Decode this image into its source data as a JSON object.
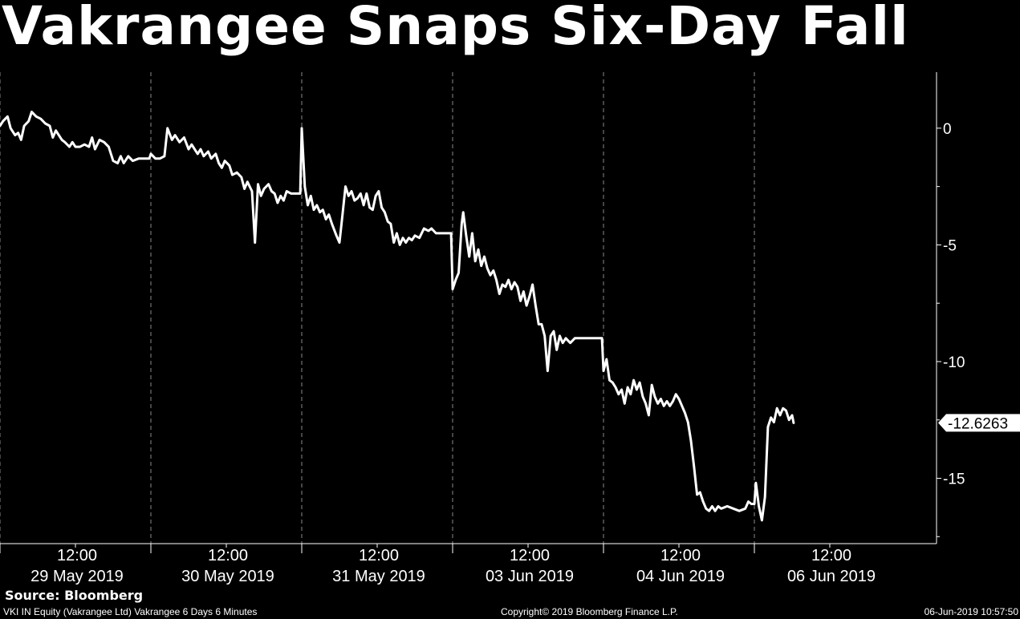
{
  "chart_data": {
    "type": "line",
    "title": "Vakrangee Snaps Six-Day Fall",
    "xlabel": "",
    "ylabel": "",
    "ylim": [
      -17.8,
      2.4
    ],
    "yticks": [
      0,
      -5,
      -10,
      -15
    ],
    "ytick_labels": [
      "0",
      "-5",
      "-10",
      "-15"
    ],
    "last_value_label": "-12.6263",
    "last_value": -12.6263,
    "grid": "vertical dashed at day boundaries",
    "x_label_groups": [
      {
        "time": "12:00",
        "date": "29 May 2019"
      },
      {
        "time": "12:00",
        "date": "30 May 2019"
      },
      {
        "time": "12:00",
        "date": "31 May 2019"
      },
      {
        "time": "12:00",
        "date": "03 Jun 2019"
      },
      {
        "time": "12:00",
        "date": "04 Jun 2019"
      },
      {
        "time": "12:00",
        "date": "06 Jun 2019"
      }
    ],
    "days": [
      "29 May 2019",
      "30 May 2019",
      "31 May 2019",
      "03 Jun 2019",
      "04 Jun 2019",
      "06 Jun 2019"
    ],
    "x_range_days": [
      0,
      6.2
    ],
    "series": [
      {
        "color": "#ffffff",
        "points": [
          [
            0.0,
            0.1
          ],
          [
            0.02,
            0.3
          ],
          [
            0.05,
            0.5
          ],
          [
            0.07,
            0.0
          ],
          [
            0.1,
            -0.3
          ],
          [
            0.12,
            -0.2
          ],
          [
            0.14,
            -0.5
          ],
          [
            0.16,
            0.1
          ],
          [
            0.19,
            0.3
          ],
          [
            0.21,
            0.7
          ],
          [
            0.24,
            0.5
          ],
          [
            0.27,
            0.4
          ],
          [
            0.3,
            0.2
          ],
          [
            0.33,
            0.1
          ],
          [
            0.35,
            -0.4
          ],
          [
            0.37,
            -0.1
          ],
          [
            0.39,
            -0.3
          ],
          [
            0.41,
            -0.5
          ],
          [
            0.43,
            -0.6
          ],
          [
            0.46,
            -0.8
          ],
          [
            0.48,
            -0.6
          ],
          [
            0.5,
            -0.8
          ],
          [
            0.53,
            -0.8
          ],
          [
            0.56,
            -0.7
          ],
          [
            0.59,
            -0.8
          ],
          [
            0.61,
            -0.4
          ],
          [
            0.63,
            -0.9
          ],
          [
            0.66,
            -0.5
          ],
          [
            0.69,
            -0.6
          ],
          [
            0.72,
            -0.8
          ],
          [
            0.75,
            -1.4
          ],
          [
            0.78,
            -1.5
          ],
          [
            0.8,
            -1.2
          ],
          [
            0.82,
            -1.5
          ],
          [
            0.85,
            -1.2
          ],
          [
            0.88,
            -1.4
          ],
          [
            0.92,
            -1.3
          ],
          [
            0.96,
            -1.3
          ],
          [
            0.99,
            -1.3
          ],
          [
            1.0,
            -1.1
          ],
          [
            1.03,
            -1.3
          ],
          [
            1.06,
            -1.3
          ],
          [
            1.09,
            -1.2
          ],
          [
            1.11,
            0.0
          ],
          [
            1.14,
            -0.5
          ],
          [
            1.16,
            -0.3
          ],
          [
            1.19,
            -0.6
          ],
          [
            1.22,
            -0.4
          ],
          [
            1.25,
            -0.9
          ],
          [
            1.27,
            -0.7
          ],
          [
            1.29,
            -0.9
          ],
          [
            1.31,
            -1.1
          ],
          [
            1.33,
            -0.9
          ],
          [
            1.35,
            -1.2
          ],
          [
            1.38,
            -1.0
          ],
          [
            1.4,
            -1.3
          ],
          [
            1.43,
            -1.1
          ],
          [
            1.45,
            -1.5
          ],
          [
            1.47,
            -1.7
          ],
          [
            1.49,
            -1.4
          ],
          [
            1.52,
            -1.6
          ],
          [
            1.54,
            -2.0
          ],
          [
            1.57,
            -1.9
          ],
          [
            1.6,
            -2.1
          ],
          [
            1.62,
            -2.6
          ],
          [
            1.64,
            -2.3
          ],
          [
            1.67,
            -2.7
          ],
          [
            1.69,
            -4.9
          ],
          [
            1.71,
            -2.4
          ],
          [
            1.73,
            -2.9
          ],
          [
            1.75,
            -2.6
          ],
          [
            1.78,
            -2.4
          ],
          [
            1.8,
            -2.7
          ],
          [
            1.82,
            -2.8
          ],
          [
            1.84,
            -3.2
          ],
          [
            1.86,
            -2.9
          ],
          [
            1.88,
            -3.1
          ],
          [
            1.9,
            -2.7
          ],
          [
            1.93,
            -2.8
          ],
          [
            1.96,
            -2.8
          ],
          [
            1.99,
            -2.8
          ],
          [
            2.0,
            0.0
          ],
          [
            2.02,
            -2.5
          ],
          [
            2.04,
            -3.3
          ],
          [
            2.06,
            -2.9
          ],
          [
            2.08,
            -3.5
          ],
          [
            2.1,
            -3.3
          ],
          [
            2.12,
            -3.6
          ],
          [
            2.14,
            -3.5
          ],
          [
            2.16,
            -3.9
          ],
          [
            2.18,
            -3.7
          ],
          [
            2.2,
            -4.1
          ],
          [
            2.23,
            -4.6
          ],
          [
            2.25,
            -4.9
          ],
          [
            2.27,
            -3.7
          ],
          [
            2.29,
            -2.5
          ],
          [
            2.31,
            -2.9
          ],
          [
            2.33,
            -2.7
          ],
          [
            2.35,
            -3.1
          ],
          [
            2.37,
            -3.0
          ],
          [
            2.39,
            -2.8
          ],
          [
            2.41,
            -3.3
          ],
          [
            2.43,
            -2.8
          ],
          [
            2.45,
            -3.4
          ],
          [
            2.47,
            -3.5
          ],
          [
            2.49,
            -2.9
          ],
          [
            2.51,
            -2.7
          ],
          [
            2.53,
            -3.4
          ],
          [
            2.55,
            -3.6
          ],
          [
            2.57,
            -4.0
          ],
          [
            2.59,
            -4.1
          ],
          [
            2.61,
            -4.9
          ],
          [
            2.63,
            -4.5
          ],
          [
            2.65,
            -5.0
          ],
          [
            2.67,
            -4.7
          ],
          [
            2.69,
            -4.9
          ],
          [
            2.71,
            -4.7
          ],
          [
            2.73,
            -4.8
          ],
          [
            2.75,
            -4.6
          ],
          [
            2.78,
            -4.7
          ],
          [
            2.81,
            -4.3
          ],
          [
            2.84,
            -4.4
          ],
          [
            2.86,
            -4.3
          ],
          [
            2.89,
            -4.5
          ],
          [
            2.94,
            -4.5
          ],
          [
            2.99,
            -4.5
          ],
          [
            3.0,
            -6.9
          ],
          [
            3.02,
            -6.5
          ],
          [
            3.04,
            -6.2
          ],
          [
            3.06,
            -4.1
          ],
          [
            3.07,
            -3.6
          ],
          [
            3.09,
            -4.6
          ],
          [
            3.11,
            -5.5
          ],
          [
            3.13,
            -4.5
          ],
          [
            3.15,
            -5.7
          ],
          [
            3.17,
            -5.2
          ],
          [
            3.19,
            -5.9
          ],
          [
            3.21,
            -5.5
          ],
          [
            3.23,
            -6.0
          ],
          [
            3.25,
            -6.3
          ],
          [
            3.27,
            -6.1
          ],
          [
            3.29,
            -6.5
          ],
          [
            3.31,
            -7.1
          ],
          [
            3.33,
            -6.7
          ],
          [
            3.35,
            -6.8
          ],
          [
            3.37,
            -6.5
          ],
          [
            3.39,
            -6.9
          ],
          [
            3.41,
            -6.6
          ],
          [
            3.43,
            -6.8
          ],
          [
            3.45,
            -7.4
          ],
          [
            3.47,
            -7.0
          ],
          [
            3.49,
            -7.6
          ],
          [
            3.51,
            -7.2
          ],
          [
            3.53,
            -6.7
          ],
          [
            3.55,
            -7.6
          ],
          [
            3.57,
            -8.4
          ],
          [
            3.59,
            -8.4
          ],
          [
            3.61,
            -8.9
          ],
          [
            3.63,
            -10.4
          ],
          [
            3.65,
            -8.9
          ],
          [
            3.67,
            -8.7
          ],
          [
            3.69,
            -9.5
          ],
          [
            3.71,
            -8.9
          ],
          [
            3.73,
            -9.2
          ],
          [
            3.75,
            -9.0
          ],
          [
            3.78,
            -9.2
          ],
          [
            3.81,
            -9.0
          ],
          [
            3.84,
            -9.0
          ],
          [
            3.9,
            -9.0
          ],
          [
            3.99,
            -9.0
          ],
          [
            4.0,
            -10.4
          ],
          [
            4.02,
            -9.9
          ],
          [
            4.04,
            -10.8
          ],
          [
            4.06,
            -10.9
          ],
          [
            4.08,
            -11.1
          ],
          [
            4.1,
            -11.4
          ],
          [
            4.12,
            -11.2
          ],
          [
            4.14,
            -11.8
          ],
          [
            4.16,
            -11.1
          ],
          [
            4.18,
            -11.4
          ],
          [
            4.2,
            -10.8
          ],
          [
            4.22,
            -11.2
          ],
          [
            4.24,
            -10.9
          ],
          [
            4.26,
            -11.5
          ],
          [
            4.28,
            -11.8
          ],
          [
            4.3,
            -12.3
          ],
          [
            4.32,
            -11.0
          ],
          [
            4.34,
            -11.5
          ],
          [
            4.36,
            -11.8
          ],
          [
            4.38,
            -11.6
          ],
          [
            4.4,
            -11.9
          ],
          [
            4.42,
            -11.7
          ],
          [
            4.44,
            -11.9
          ],
          [
            4.46,
            -11.7
          ],
          [
            4.48,
            -11.4
          ],
          [
            4.5,
            -11.6
          ],
          [
            4.52,
            -11.9
          ],
          [
            4.54,
            -12.2
          ],
          [
            4.56,
            -12.6
          ],
          [
            4.58,
            -13.4
          ],
          [
            4.6,
            -14.5
          ],
          [
            4.62,
            -15.7
          ],
          [
            4.64,
            -15.6
          ],
          [
            4.66,
            -16.0
          ],
          [
            4.68,
            -16.3
          ],
          [
            4.7,
            -16.4
          ],
          [
            4.72,
            -16.2
          ],
          [
            4.74,
            -16.4
          ],
          [
            4.76,
            -16.2
          ],
          [
            4.78,
            -16.3
          ],
          [
            4.82,
            -16.2
          ],
          [
            4.86,
            -16.3
          ],
          [
            4.9,
            -16.4
          ],
          [
            4.94,
            -16.3
          ],
          [
            4.96,
            -16.0
          ],
          [
            4.98,
            -16.1
          ],
          [
            5.0,
            -16.1
          ],
          [
            5.01,
            -15.2
          ],
          [
            5.03,
            -16.2
          ],
          [
            5.05,
            -16.8
          ],
          [
            5.07,
            -15.8
          ],
          [
            5.09,
            -12.8
          ],
          [
            5.11,
            -12.4
          ],
          [
            5.13,
            -12.6
          ],
          [
            5.15,
            -12.0
          ],
          [
            5.17,
            -12.3
          ],
          [
            5.19,
            -12.0
          ],
          [
            5.21,
            -12.1
          ],
          [
            5.23,
            -12.5
          ],
          [
            5.25,
            -12.3
          ],
          [
            5.26,
            -12.6263
          ]
        ]
      }
    ]
  },
  "source": "Source: Bloomberg",
  "footer": {
    "left": "VKI IN Equity (Vakrangee Ltd) Vakrangee 6 Days 6 Minutes",
    "center": "Copyright© 2019 Bloomberg Finance L.P.",
    "right": "06-Jun-2019 10:57:50"
  }
}
